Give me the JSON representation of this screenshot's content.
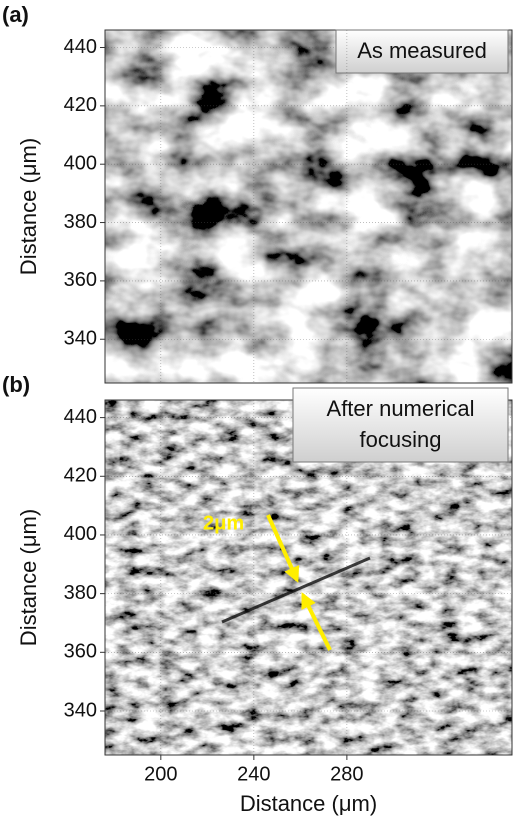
{
  "chart_data": [
    {
      "type": "image",
      "panel_label": "(a)",
      "annotation": [
        "As measured"
      ],
      "y_label": "Distance (μm)",
      "xlim": [
        176,
        351
      ],
      "ylim": [
        325,
        446
      ],
      "yticks": [
        340,
        360,
        380,
        400,
        420,
        440
      ],
      "grid": true
    },
    {
      "type": "image",
      "panel_label": "(b)",
      "annotation": [
        "After numerical",
        "focusing"
      ],
      "scale_label": "2μm",
      "x_label": "Distance (μm)",
      "y_label": "Distance (μm)",
      "xlim": [
        176,
        351
      ],
      "ylim": [
        325,
        446
      ],
      "xticks": [
        200,
        240,
        280
      ],
      "yticks": [
        340,
        360,
        380,
        400,
        420,
        440
      ],
      "grid": true
    }
  ]
}
